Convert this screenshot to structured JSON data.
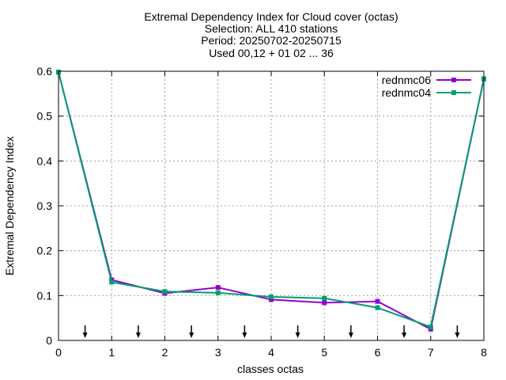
{
  "chart_data": {
    "type": "line",
    "title": [
      "Extremal Dependency Index  for Cloud cover (octas)",
      "Selection: ALL    410 stations",
      "Period: 20250702-20250715",
      "Used 00,12 + 01 02 ... 36"
    ],
    "xlabel": "classes octas",
    "ylabel": "Extremal Dependency Index",
    "xlim": [
      0,
      8
    ],
    "ylim": [
      0,
      0.6
    ],
    "xticks": [
      "0",
      "1",
      "2",
      "3",
      "4",
      "5",
      "6",
      "7",
      "8"
    ],
    "yticks": [
      "0",
      "0.1",
      "0.2",
      "0.3",
      "0.4",
      "0.5",
      "0.6"
    ],
    "grid": true,
    "legend_position": "top-right",
    "arrows_x": [
      0.5,
      1.5,
      2.5,
      3.5,
      4.5,
      5.5,
      6.5,
      7.5
    ],
    "x": [
      0,
      1,
      2,
      3,
      4,
      5,
      6,
      7,
      8
    ],
    "series": [
      {
        "name": "rednmc06",
        "color": "#9400d3",
        "values": [
          0.598,
          0.135,
          0.105,
          0.118,
          0.091,
          0.084,
          0.087,
          0.025,
          0.583
        ]
      },
      {
        "name": "rednmc04",
        "color": "#009e73",
        "values": [
          0.598,
          0.13,
          0.109,
          0.106,
          0.097,
          0.094,
          0.073,
          0.03,
          0.583
        ]
      }
    ]
  }
}
